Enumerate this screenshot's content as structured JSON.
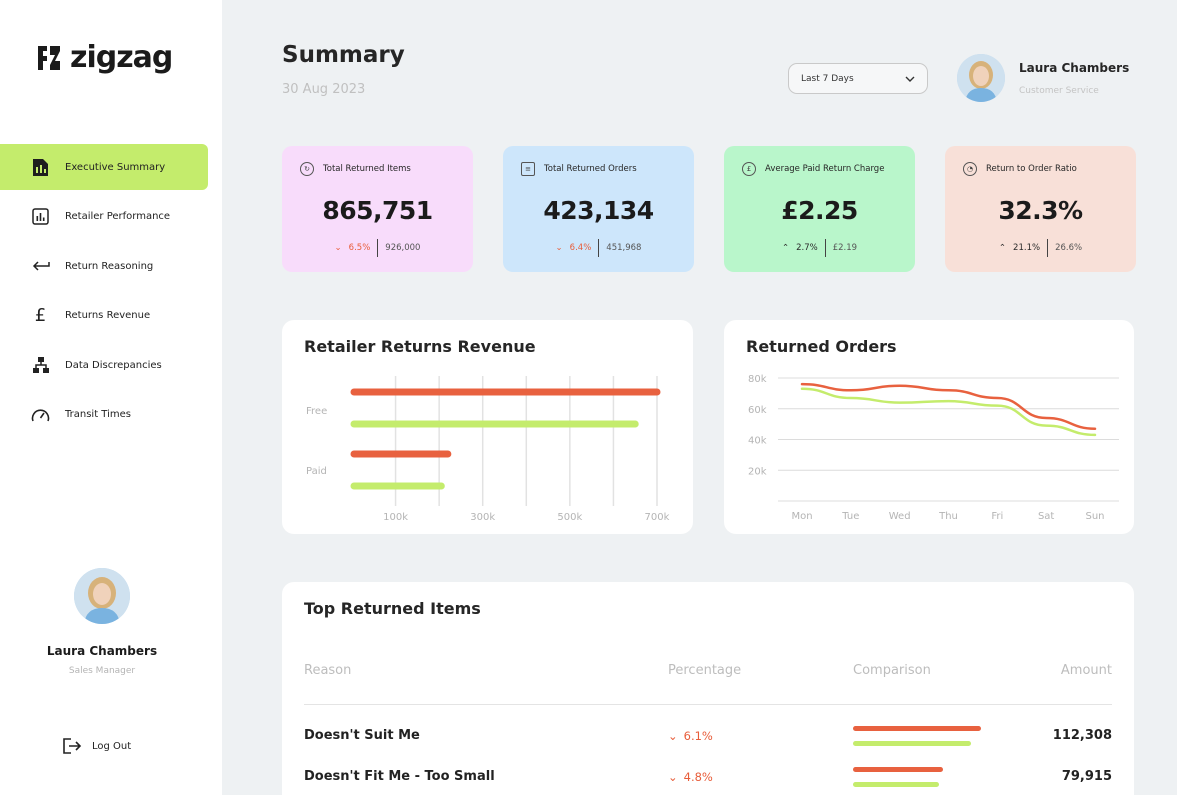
{
  "brand": {
    "name": "zigzag"
  },
  "sidebar": {
    "items": [
      {
        "label": "Executive Summary",
        "icon": "document-icon"
      },
      {
        "label": "Retailer Performance",
        "icon": "bar-chart-icon"
      },
      {
        "label": "Return Reasoning",
        "icon": "return-arrow-icon"
      },
      {
        "label": "Returns Revenue",
        "icon": "pound-icon"
      },
      {
        "label": "Data Discrepancies",
        "icon": "hierarchy-icon"
      },
      {
        "label": "Transit Times",
        "icon": "speedometer-icon"
      }
    ],
    "profile": {
      "name": "Laura Chambers",
      "role": "Sales Manager"
    },
    "logout": "Log Out"
  },
  "header": {
    "title": "Summary",
    "date": "30 Aug 2023",
    "range": "Last 7 Days",
    "user": {
      "name": "Laura Chambers",
      "role": "Customer Service"
    }
  },
  "kpis": [
    {
      "label": "Total Returned Items",
      "value": "865,751",
      "change": "6.5%",
      "direction": "down",
      "previous": "926,000",
      "bg": "#f8dcfb"
    },
    {
      "label": "Total Returned Orders",
      "value": "423,134",
      "change": "6.4%",
      "direction": "down",
      "previous": "451,968",
      "bg": "#cde6fb"
    },
    {
      "label": "Average Paid Return Charge",
      "value": "£2.25",
      "change": "2.7%",
      "direction": "up",
      "previous": "£2.19",
      "bg": "#b9f6cb"
    },
    {
      "label": "Return to Order Ratio",
      "value": "32.3%",
      "change": "21.1%",
      "direction": "up",
      "previous": "26.6%",
      "bg": "#f8e0d8"
    }
  ],
  "colors": {
    "current": "#e8613f",
    "previous": "#c4ec6c",
    "active_nav": "#c4ec6c"
  },
  "chart_data": [
    {
      "type": "bar",
      "orientation": "horizontal",
      "title": "Retailer Returns Revenue",
      "categories": [
        "Free",
        "Paid"
      ],
      "series": [
        {
          "values": [
            700000,
            220000
          ],
          "color": "#e8613f"
        },
        {
          "values": [
            650000,
            205000
          ],
          "color": "#c4ec6c"
        }
      ],
      "xticks": [
        "100k",
        "300k",
        "500k",
        "700k"
      ],
      "xlim": [
        0,
        700000
      ],
      "grid": true
    },
    {
      "type": "line",
      "title": "Returned Orders",
      "x": [
        "Mon",
        "Tue",
        "Wed",
        "Thu",
        "Fri",
        "Sat",
        "Sun"
      ],
      "series": [
        {
          "values": [
            76000,
            72000,
            75000,
            72000,
            67000,
            54000,
            47000
          ],
          "color": "#e8613f"
        },
        {
          "values": [
            73000,
            67000,
            64000,
            65000,
            62000,
            49000,
            43000
          ],
          "color": "#c4ec6c"
        }
      ],
      "yticks": [
        "80k",
        "60k",
        "40k",
        "20k"
      ],
      "ylim": [
        0,
        80000
      ],
      "grid": true
    }
  ],
  "top_items": {
    "title": "Top Returned Items",
    "columns": [
      "Reason",
      "Percentage",
      "Comparison",
      "Amount"
    ],
    "rows": [
      {
        "reason": "Doesn't Suit Me",
        "pct": "6.1%",
        "amount": "112,308",
        "cmp_current": 0.8,
        "cmp_previous": 0.74
      },
      {
        "reason": "Doesn't Fit Me - Too Small",
        "pct": "4.8%",
        "amount": "79,915",
        "cmp_current": 0.56,
        "cmp_previous": 0.54
      }
    ]
  }
}
